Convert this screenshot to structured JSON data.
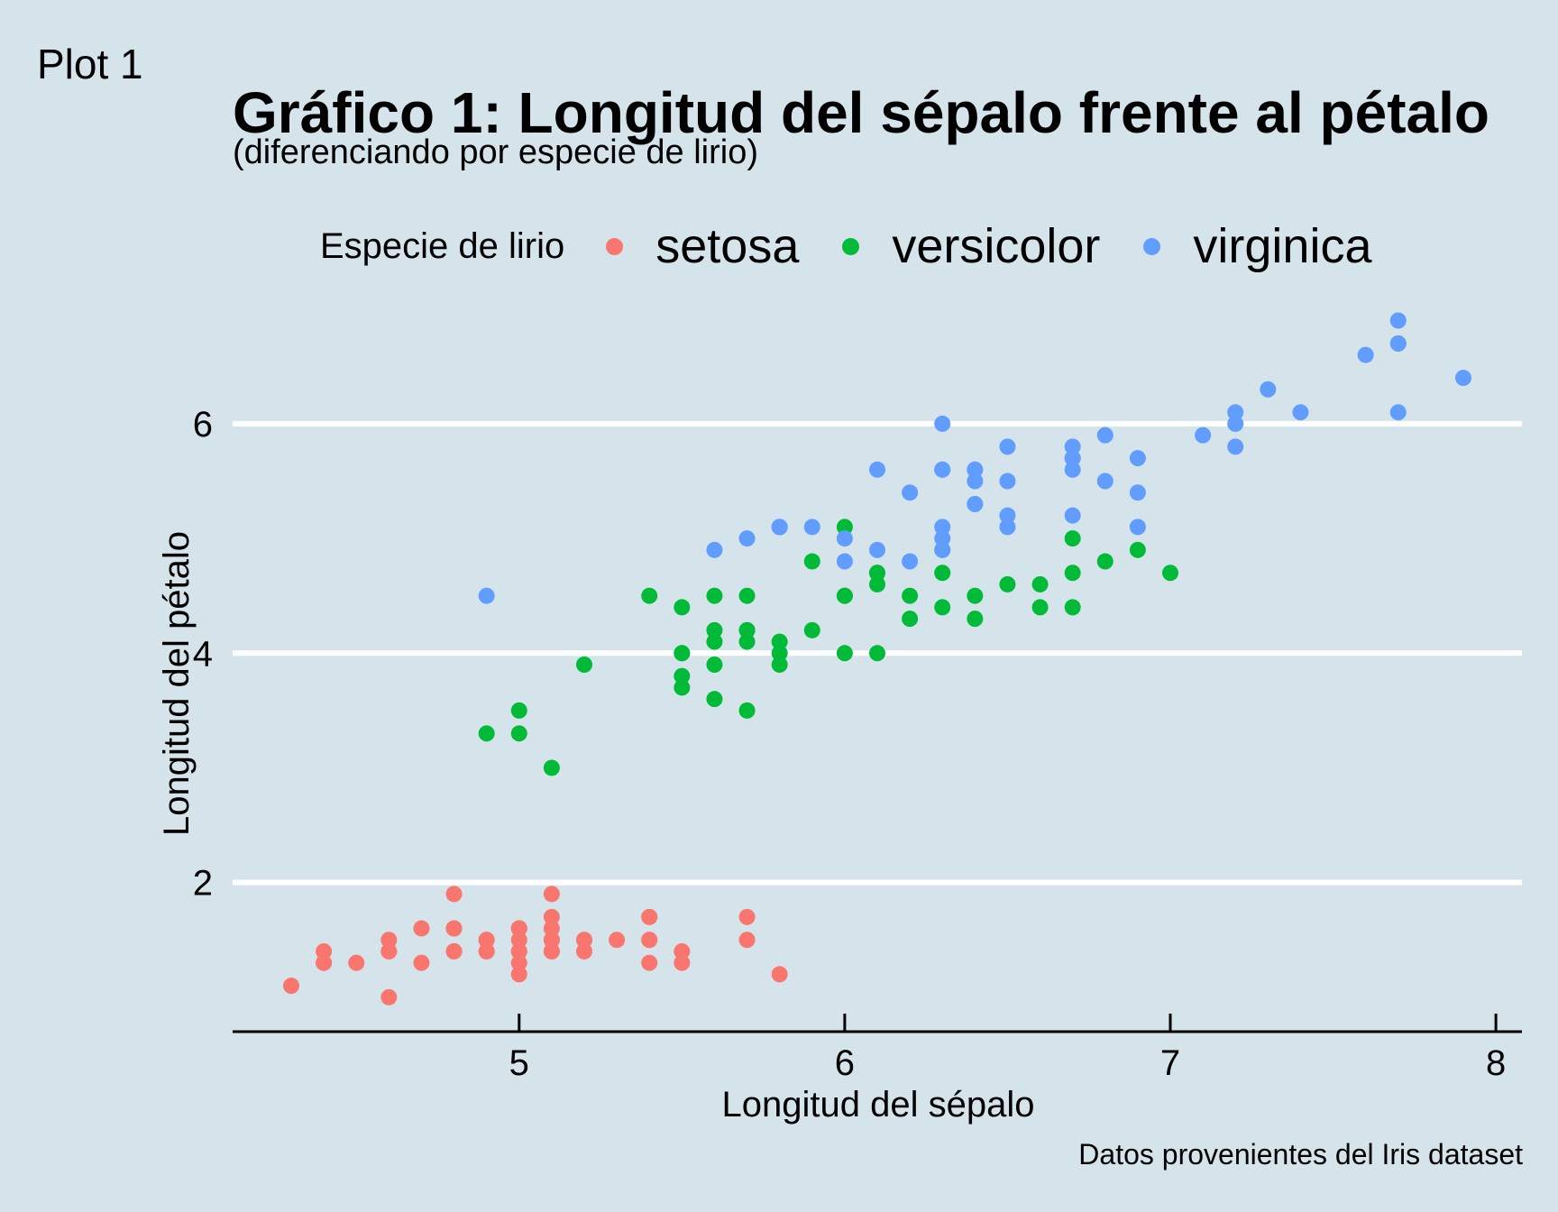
{
  "plot_tag": "Plot 1",
  "colors": {
    "background": "#d5e4eb",
    "grid": "#ffffff",
    "axis": "#000000"
  },
  "chart_data": {
    "type": "scatter",
    "title": "Gráfico 1: Longitud del sépalo frente al pétalo",
    "subtitle": "(diferenciando por especie de lirio)",
    "xlabel": "Longitud del sépalo",
    "ylabel": "Longitud del pétalo",
    "caption": "Datos provenientes del Iris dataset",
    "legend_title": "Especie de lirio",
    "legend_position": "top",
    "xlim": [
      4.12,
      8.08
    ],
    "ylim": [
      0.7,
      7.1
    ],
    "x_ticks": [
      5,
      6,
      7,
      8
    ],
    "y_ticks": [
      2,
      4,
      6
    ],
    "grid": "horizontal major",
    "series": [
      {
        "name": "setosa",
        "color": "#f8766d",
        "points": [
          [
            5.1,
            1.4
          ],
          [
            4.9,
            1.4
          ],
          [
            4.7,
            1.3
          ],
          [
            4.6,
            1.5
          ],
          [
            5.0,
            1.4
          ],
          [
            5.4,
            1.7
          ],
          [
            4.6,
            1.4
          ],
          [
            5.0,
            1.5
          ],
          [
            4.4,
            1.4
          ],
          [
            4.9,
            1.5
          ],
          [
            5.4,
            1.5
          ],
          [
            4.8,
            1.6
          ],
          [
            4.8,
            1.4
          ],
          [
            4.3,
            1.1
          ],
          [
            5.8,
            1.2
          ],
          [
            5.7,
            1.5
          ],
          [
            5.4,
            1.3
          ],
          [
            5.1,
            1.4
          ],
          [
            5.7,
            1.7
          ],
          [
            5.1,
            1.5
          ],
          [
            5.4,
            1.7
          ],
          [
            5.1,
            1.5
          ],
          [
            4.6,
            1.0
          ],
          [
            5.1,
            1.7
          ],
          [
            4.8,
            1.9
          ],
          [
            5.0,
            1.6
          ],
          [
            5.0,
            1.6
          ],
          [
            5.2,
            1.5
          ],
          [
            5.2,
            1.4
          ],
          [
            4.7,
            1.6
          ],
          [
            4.8,
            1.6
          ],
          [
            5.4,
            1.5
          ],
          [
            5.2,
            1.5
          ],
          [
            5.5,
            1.4
          ],
          [
            4.9,
            1.5
          ],
          [
            5.0,
            1.2
          ],
          [
            5.5,
            1.3
          ],
          [
            4.9,
            1.4
          ],
          [
            4.4,
            1.3
          ],
          [
            5.1,
            1.5
          ],
          [
            5.0,
            1.3
          ],
          [
            4.5,
            1.3
          ],
          [
            4.4,
            1.3
          ],
          [
            5.0,
            1.6
          ],
          [
            5.1,
            1.9
          ],
          [
            4.8,
            1.4
          ],
          [
            5.1,
            1.6
          ],
          [
            4.6,
            1.4
          ],
          [
            5.3,
            1.5
          ],
          [
            5.0,
            1.4
          ]
        ]
      },
      {
        "name": "versicolor",
        "color": "#00ba38",
        "points": [
          [
            7.0,
            4.7
          ],
          [
            6.4,
            4.5
          ],
          [
            6.9,
            4.9
          ],
          [
            5.5,
            4.0
          ],
          [
            6.5,
            4.6
          ],
          [
            5.7,
            4.5
          ],
          [
            6.3,
            4.7
          ],
          [
            4.9,
            3.3
          ],
          [
            6.6,
            4.6
          ],
          [
            5.2,
            3.9
          ],
          [
            5.0,
            3.5
          ],
          [
            5.9,
            4.2
          ],
          [
            6.0,
            4.0
          ],
          [
            6.1,
            4.7
          ],
          [
            5.6,
            3.6
          ],
          [
            6.7,
            4.4
          ],
          [
            5.6,
            4.5
          ],
          [
            5.8,
            4.1
          ],
          [
            6.2,
            4.5
          ],
          [
            5.6,
            3.9
          ],
          [
            5.9,
            4.8
          ],
          [
            6.1,
            4.0
          ],
          [
            6.3,
            4.9
          ],
          [
            6.1,
            4.7
          ],
          [
            6.4,
            4.3
          ],
          [
            6.6,
            4.4
          ],
          [
            6.8,
            4.8
          ],
          [
            6.7,
            5.0
          ],
          [
            6.0,
            4.5
          ],
          [
            5.7,
            3.5
          ],
          [
            5.5,
            3.8
          ],
          [
            5.5,
            3.7
          ],
          [
            5.8,
            3.9
          ],
          [
            6.0,
            5.1
          ],
          [
            5.4,
            4.5
          ],
          [
            6.0,
            4.5
          ],
          [
            6.7,
            4.7
          ],
          [
            6.3,
            4.4
          ],
          [
            5.6,
            4.1
          ],
          [
            5.5,
            4.0
          ],
          [
            5.5,
            4.4
          ],
          [
            6.1,
            4.6
          ],
          [
            5.8,
            4.0
          ],
          [
            5.0,
            3.3
          ],
          [
            5.6,
            4.2
          ],
          [
            5.7,
            4.2
          ],
          [
            5.7,
            4.2
          ],
          [
            6.2,
            4.3
          ],
          [
            5.1,
            3.0
          ],
          [
            5.7,
            4.1
          ]
        ]
      },
      {
        "name": "virginica",
        "color": "#619cff",
        "points": [
          [
            6.3,
            6.0
          ],
          [
            5.8,
            5.1
          ],
          [
            7.1,
            5.9
          ],
          [
            6.3,
            5.6
          ],
          [
            6.5,
            5.8
          ],
          [
            7.6,
            6.6
          ],
          [
            4.9,
            4.5
          ],
          [
            7.3,
            6.3
          ],
          [
            6.7,
            5.8
          ],
          [
            7.2,
            6.1
          ],
          [
            6.5,
            5.1
          ],
          [
            6.4,
            5.3
          ],
          [
            6.8,
            5.5
          ],
          [
            5.7,
            5.0
          ],
          [
            5.8,
            5.1
          ],
          [
            6.4,
            5.3
          ],
          [
            6.5,
            5.5
          ],
          [
            7.7,
            6.7
          ],
          [
            7.7,
            6.9
          ],
          [
            6.0,
            5.0
          ],
          [
            6.9,
            5.7
          ],
          [
            5.6,
            4.9
          ],
          [
            7.7,
            6.7
          ],
          [
            6.3,
            4.9
          ],
          [
            6.7,
            5.7
          ],
          [
            7.2,
            6.0
          ],
          [
            6.2,
            4.8
          ],
          [
            6.1,
            4.9
          ],
          [
            6.4,
            5.6
          ],
          [
            7.2,
            5.8
          ],
          [
            7.4,
            6.1
          ],
          [
            7.9,
            6.4
          ],
          [
            6.4,
            5.6
          ],
          [
            6.3,
            5.1
          ],
          [
            6.1,
            5.6
          ],
          [
            7.7,
            6.1
          ],
          [
            6.3,
            5.6
          ],
          [
            6.4,
            5.5
          ],
          [
            6.0,
            4.8
          ],
          [
            6.9,
            5.4
          ],
          [
            6.7,
            5.6
          ],
          [
            6.9,
            5.1
          ],
          [
            5.8,
            5.1
          ],
          [
            6.8,
            5.9
          ],
          [
            6.7,
            5.7
          ],
          [
            6.7,
            5.2
          ],
          [
            6.3,
            5.0
          ],
          [
            6.5,
            5.2
          ],
          [
            6.2,
            5.4
          ],
          [
            5.9,
            5.1
          ]
        ]
      }
    ]
  }
}
